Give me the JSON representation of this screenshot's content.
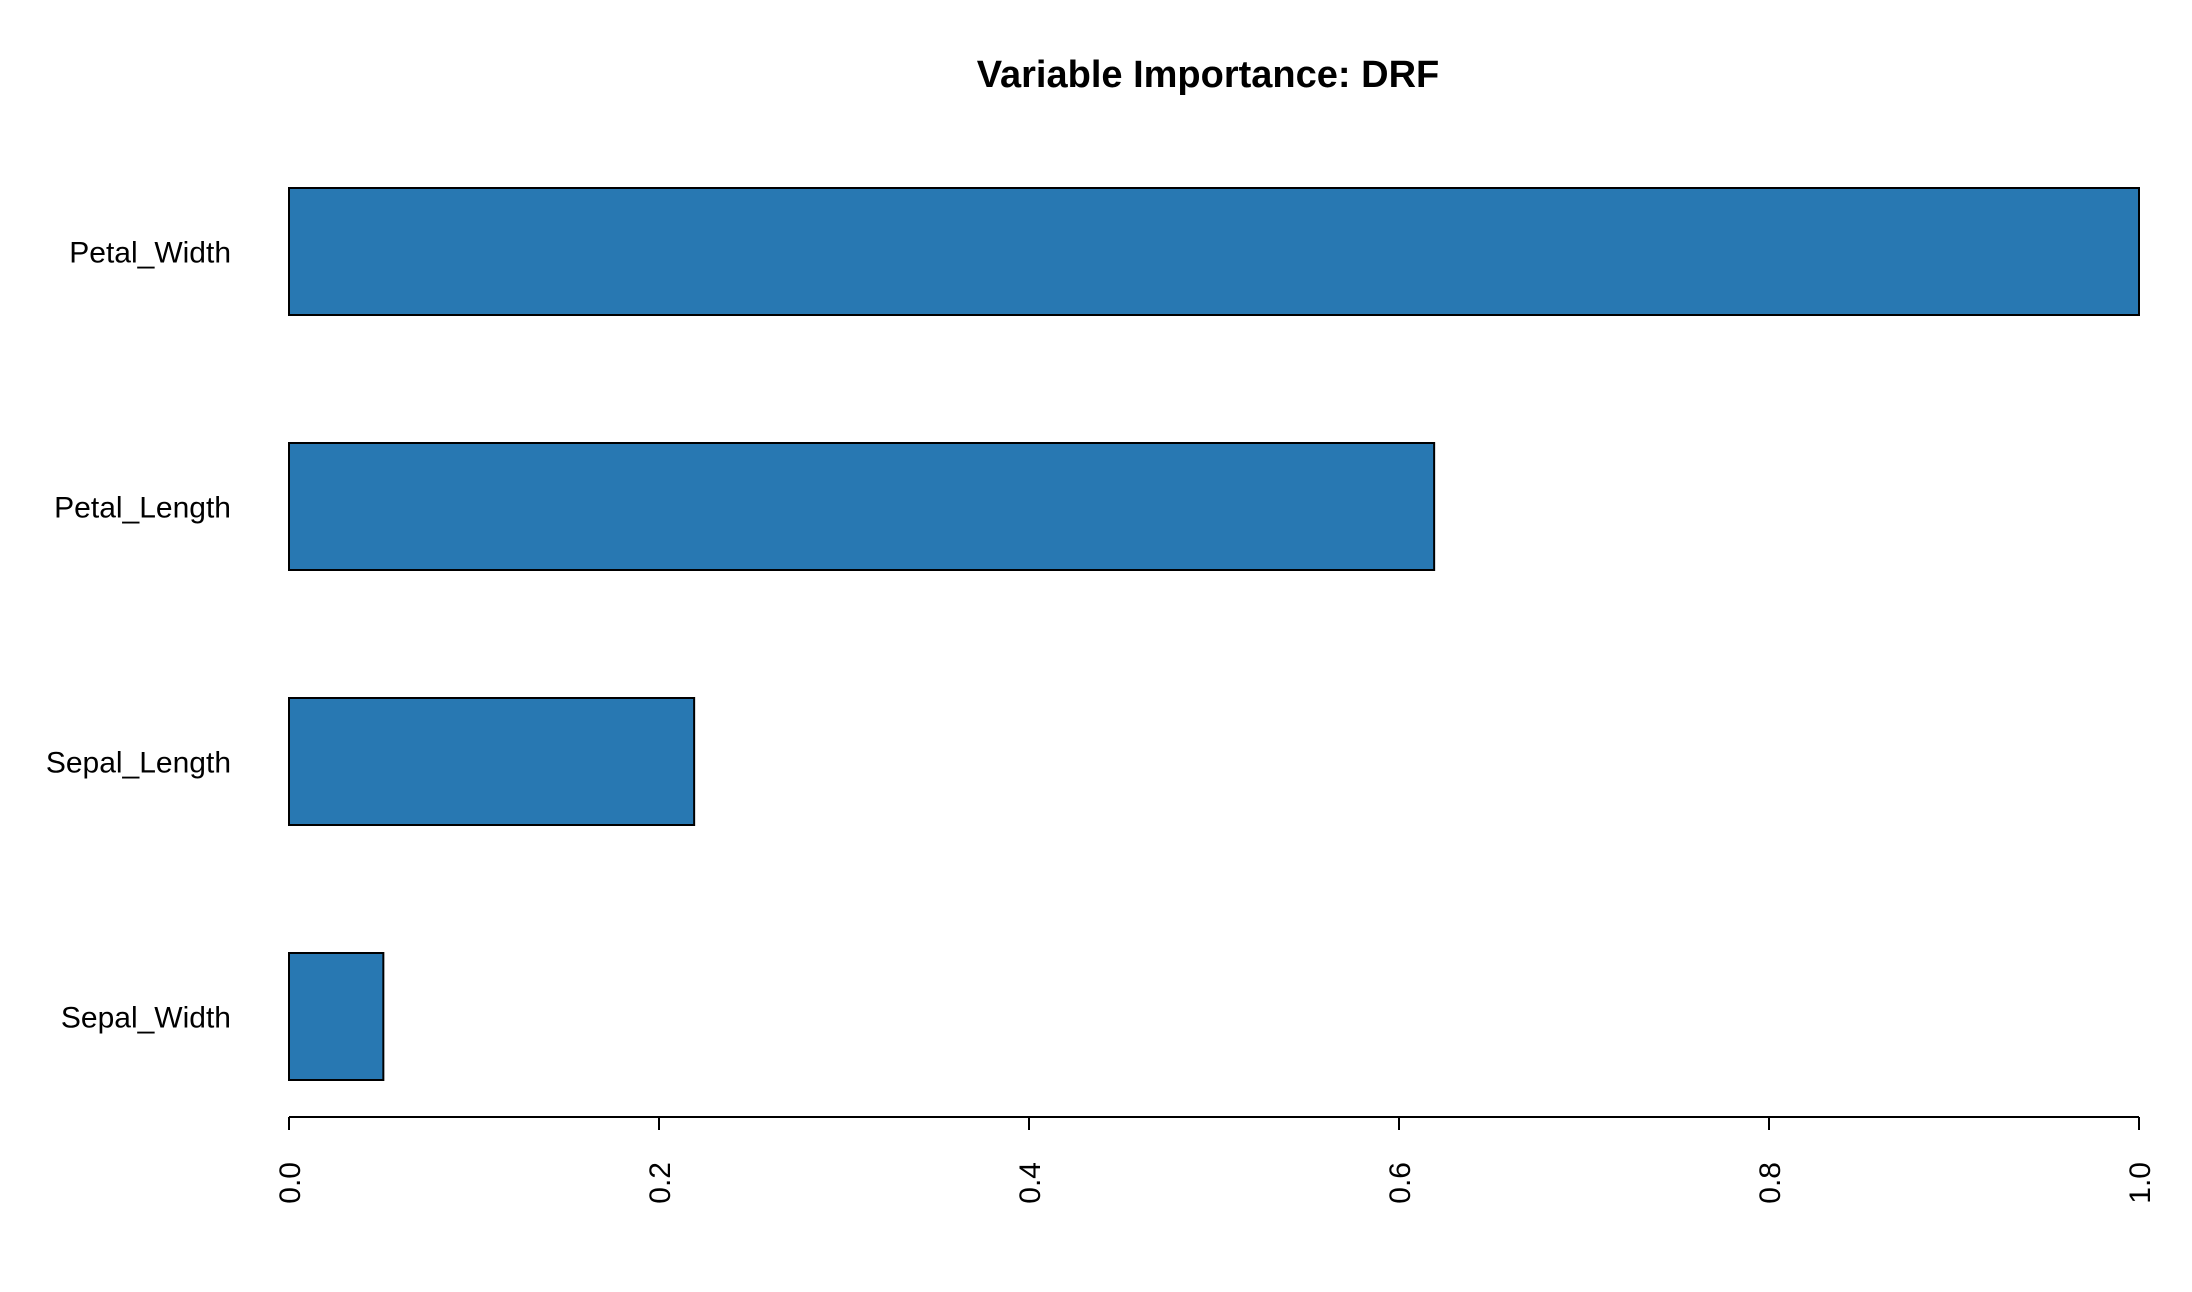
{
  "chart_data": {
    "type": "bar",
    "orientation": "horizontal",
    "title": "Variable Importance: DRF",
    "xlabel": "",
    "ylabel": "",
    "categories": [
      "Petal_Width",
      "Petal_Length",
      "Sepal_Length",
      "Sepal_Width"
    ],
    "values": [
      1.0,
      0.619,
      0.219,
      0.051
    ],
    "xlim": [
      0,
      1
    ],
    "xticks": [
      0.0,
      0.2,
      0.4,
      0.6,
      0.8,
      1.0
    ],
    "xtick_labels": [
      "0.0",
      "0.2",
      "0.4",
      "0.6",
      "0.8",
      "1.0"
    ],
    "bar_color": "#2878B2",
    "bar_edge_color": "#000000",
    "grid": false,
    "legend": "none"
  }
}
